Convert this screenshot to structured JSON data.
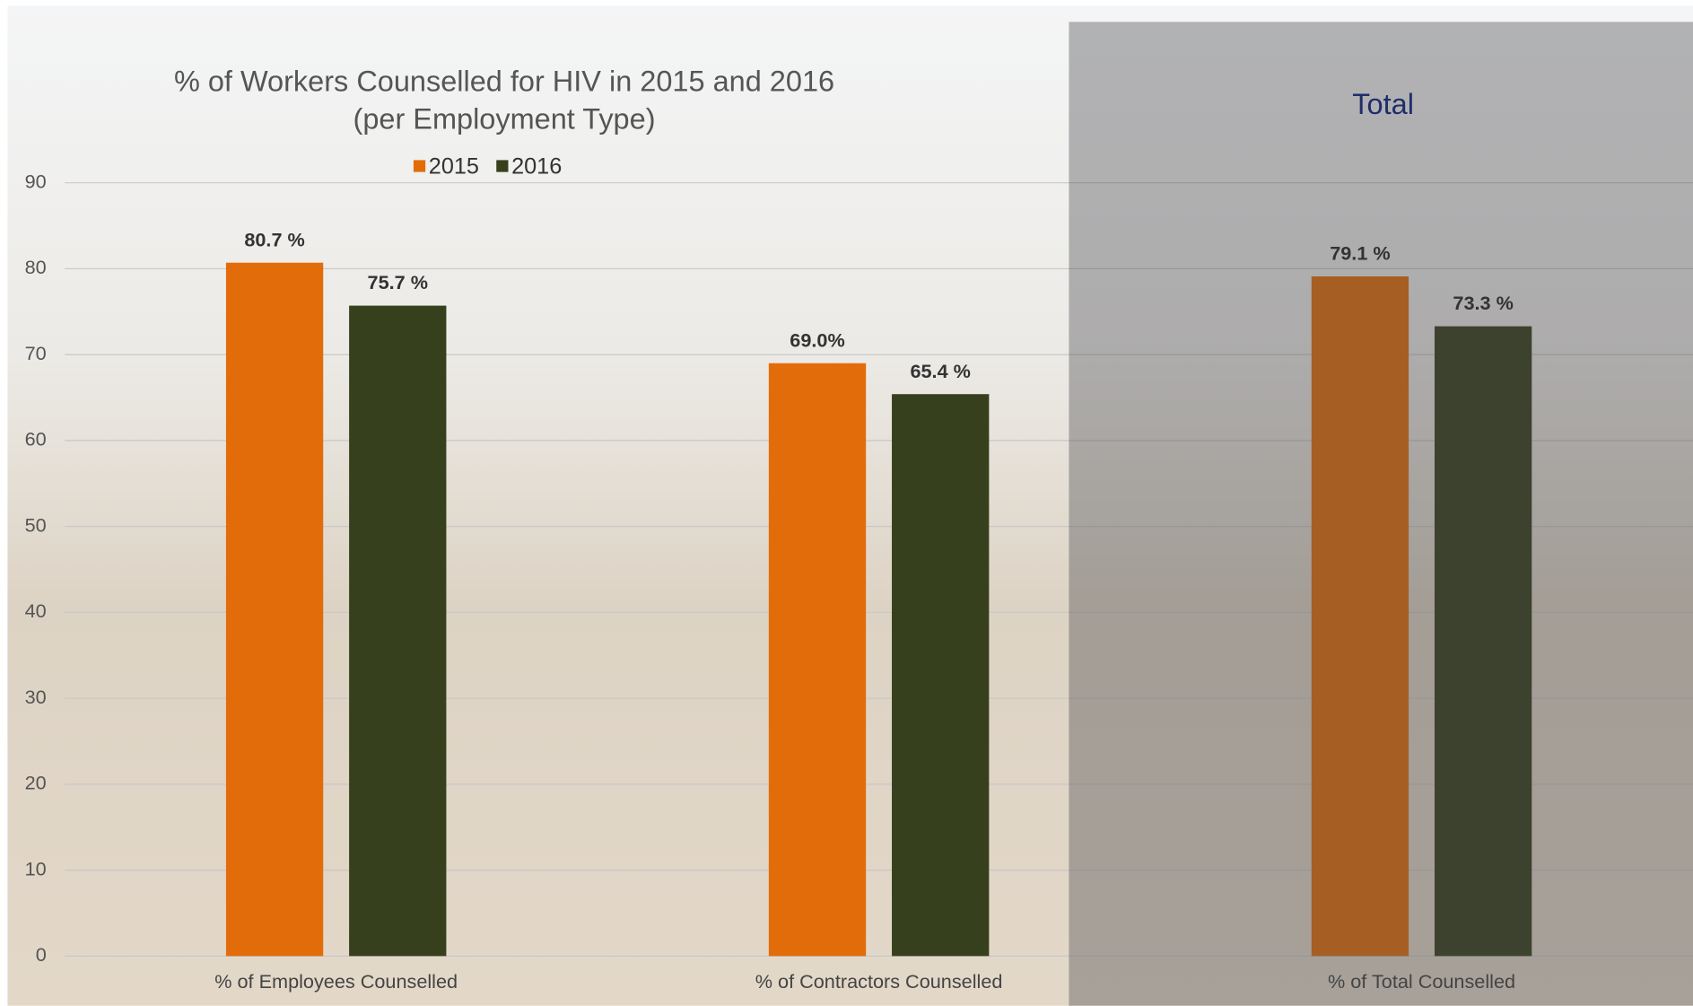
{
  "chart_data": {
    "type": "bar",
    "title": "% of Workers Counselled for HIV in 2015 and 2016",
    "subtitle": "(per Employment Type)",
    "annotation": "Total",
    "categories": [
      "% of Employees Counselled",
      "% of Contractors Counselled",
      "% of Total Counselled"
    ],
    "series": [
      {
        "name": "2015",
        "color": "#e36c0a",
        "values": [
          80.7,
          69.0,
          79.1
        ],
        "value_labels": [
          "80.7 %",
          "69.0%",
          "79.1 %"
        ]
      },
      {
        "name": "2016",
        "color": "#37401c",
        "values": [
          75.7,
          65.4,
          73.3
        ],
        "value_labels": [
          "75.7 %",
          "65.4 %",
          "73.3 %"
        ]
      }
    ],
    "ylim": [
      0,
      90
    ],
    "yticks": [
      0,
      10,
      20,
      30,
      40,
      50,
      60,
      70,
      80,
      90
    ],
    "grid": true,
    "legend": "top"
  }
}
